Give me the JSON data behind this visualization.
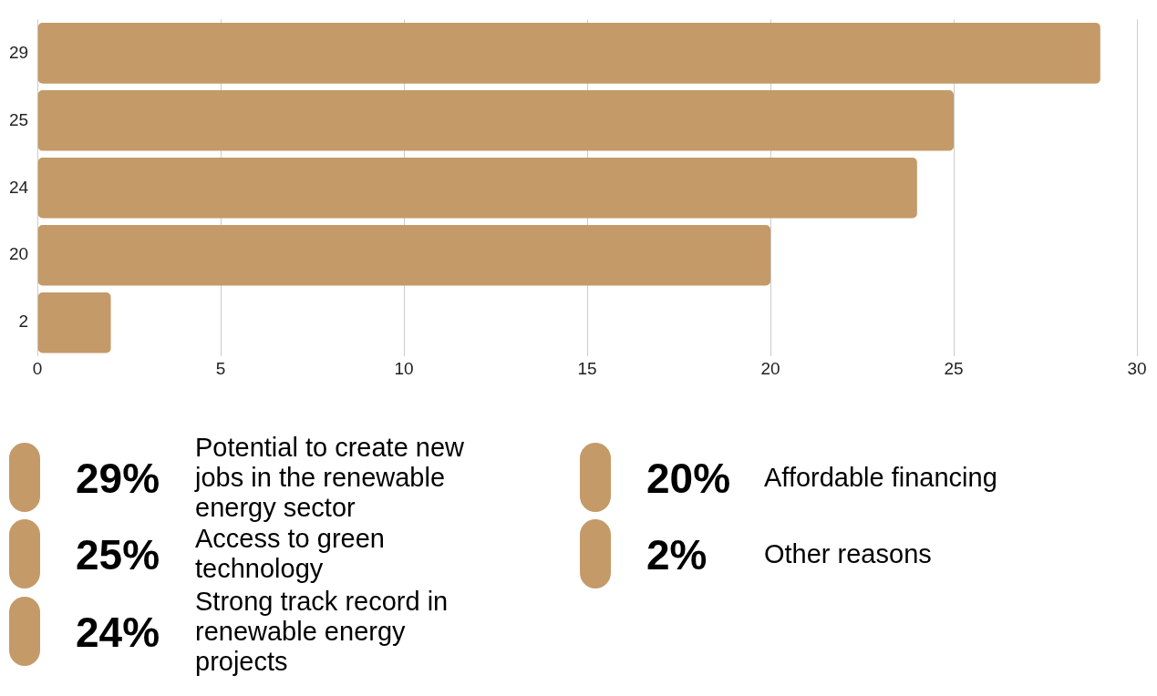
{
  "chart_data": [
    {
      "type": "bar",
      "orientation": "horizontal",
      "categories": [
        "29",
        "25",
        "24",
        "20",
        "2"
      ],
      "values": [
        29,
        25,
        24,
        20,
        2
      ],
      "color": "#c49a68",
      "xlim": [
        0,
        30
      ],
      "xticks": [
        0,
        5,
        10,
        15,
        20,
        25,
        30
      ],
      "grid": "x",
      "legend": false
    },
    {
      "type": "other",
      "annotations": [
        "29%",
        "Potential to create new jobs in the renewable energy sector",
        "25%",
        "Access to green technology",
        "24%",
        "Strong track record in renewable energy projects",
        "20%",
        "Affordable financing",
        "2%",
        "Other reasons"
      ]
    }
  ]
}
